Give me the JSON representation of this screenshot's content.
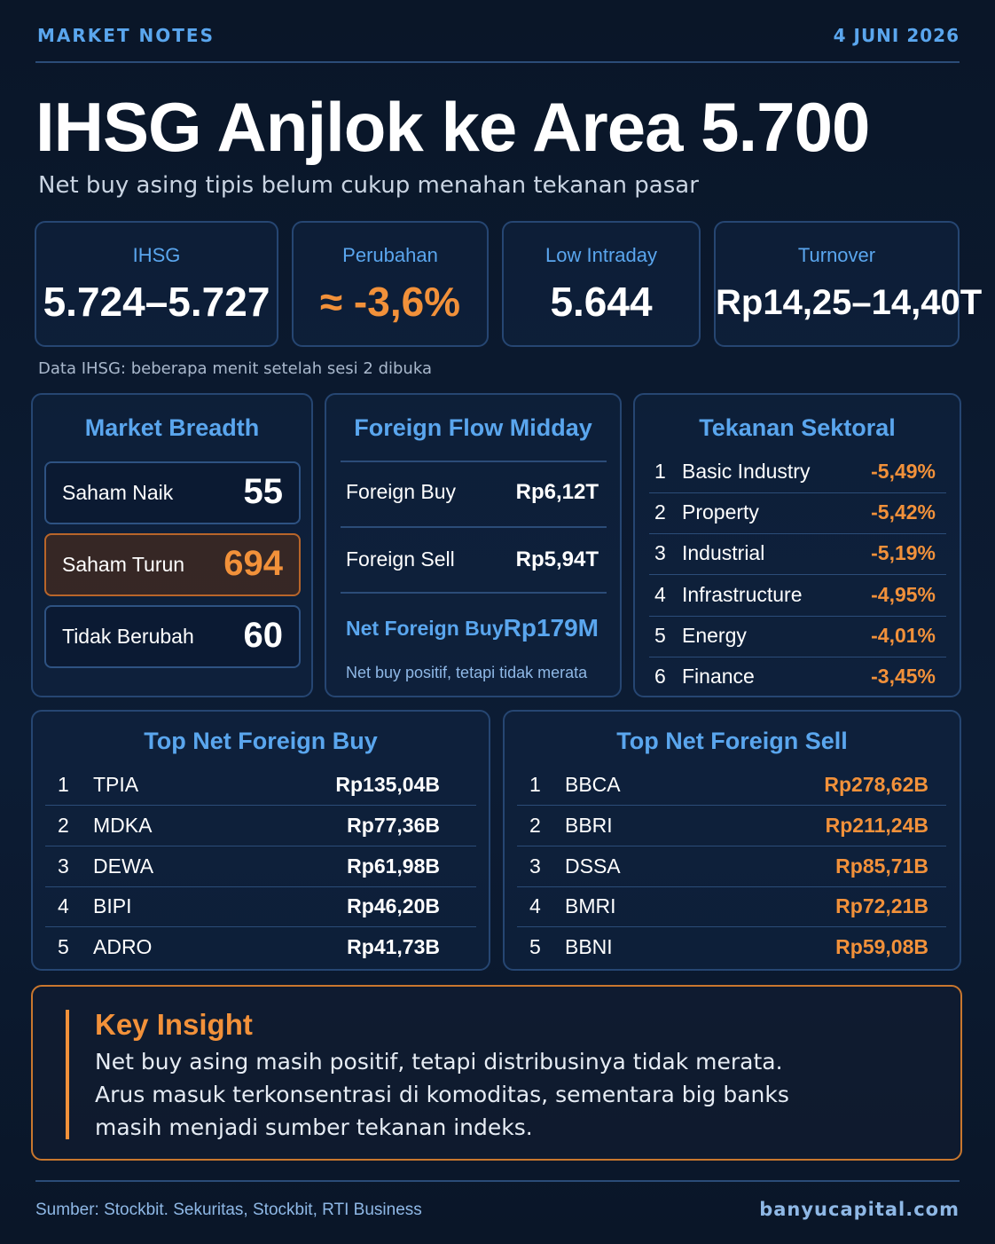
{
  "header": {
    "label": "MARKET NOTES",
    "date": "4 JUNI 2026"
  },
  "title": "IHSG Anjlok ke Area 5.700",
  "subtitle": "Net buy asing tipis belum cukup menahan tekanan pasar",
  "stats": [
    {
      "label": "IHSG",
      "value": "5.724–5.727"
    },
    {
      "label": "Perubahan",
      "value": "≈ -3,6%"
    },
    {
      "label": "Low Intraday",
      "value": "5.644"
    },
    {
      "label": "Turnover",
      "value": "Rp14,25–14,40T"
    }
  ],
  "stats_note": "Data IHSG: beberapa menit setelah sesi 2 dibuka",
  "breadth": {
    "title": "Market Breadth",
    "rows": [
      {
        "label": "Saham Naik",
        "value": "55"
      },
      {
        "label": "Saham Turun",
        "value": "694"
      },
      {
        "label": "Tidak Berubah",
        "value": "60"
      }
    ]
  },
  "foreign_flow": {
    "title": "Foreign Flow Midday",
    "rows": [
      {
        "label": "Foreign Buy",
        "value": "Rp6,12T"
      },
      {
        "label": "Foreign Sell",
        "value": "Rp5,94T"
      },
      {
        "label": "Net Foreign Buy",
        "value": "Rp179M"
      }
    ],
    "note": "Net buy positif, tetapi tidak merata"
  },
  "sectors": {
    "title": "Tekanan Sektoral",
    "rows": [
      {
        "rank": "1",
        "name": "Basic Industry",
        "value": "-5,49%"
      },
      {
        "rank": "2",
        "name": "Property",
        "value": "-5,42%"
      },
      {
        "rank": "3",
        "name": "Industrial",
        "value": "-5,19%"
      },
      {
        "rank": "4",
        "name": "Infrastructure",
        "value": "-4,95%"
      },
      {
        "rank": "5",
        "name": "Energy",
        "value": "-4,01%"
      },
      {
        "rank": "6",
        "name": "Finance",
        "value": "-3,45%"
      }
    ]
  },
  "top_buy": {
    "title": "Top Net Foreign Buy",
    "rows": [
      {
        "rank": "1",
        "ticker": "TPIA",
        "value": "Rp135,04B"
      },
      {
        "rank": "2",
        "ticker": "MDKA",
        "value": "Rp77,36B"
      },
      {
        "rank": "3",
        "ticker": "DEWA",
        "value": "Rp61,98B"
      },
      {
        "rank": "4",
        "ticker": "BIPI",
        "value": "Rp46,20B"
      },
      {
        "rank": "5",
        "ticker": "ADRO",
        "value": "Rp41,73B"
      }
    ]
  },
  "top_sell": {
    "title": "Top Net Foreign Sell",
    "rows": [
      {
        "rank": "1",
        "ticker": "BBCA",
        "value": "Rp278,62B"
      },
      {
        "rank": "2",
        "ticker": "BBRI",
        "value": "Rp211,24B"
      },
      {
        "rank": "3",
        "ticker": "DSSA",
        "value": "Rp85,71B"
      },
      {
        "rank": "4",
        "ticker": "BMRI",
        "value": "Rp72,21B"
      },
      {
        "rank": "5",
        "ticker": "BBNI",
        "value": "Rp59,08B"
      }
    ]
  },
  "insight": {
    "title": "Key Insight",
    "lines": [
      "Net buy asing masih positif, tetapi distribusinya tidak merata.",
      "Arus masuk terkonsentrasi di komoditas, sementara big banks",
      "masih menjadi sumber tekanan indeks."
    ]
  },
  "footer": {
    "source": "Sumber: Stockbit. Sekuritas, Stockbit, RTI Business",
    "site": "banyucapital.com"
  }
}
